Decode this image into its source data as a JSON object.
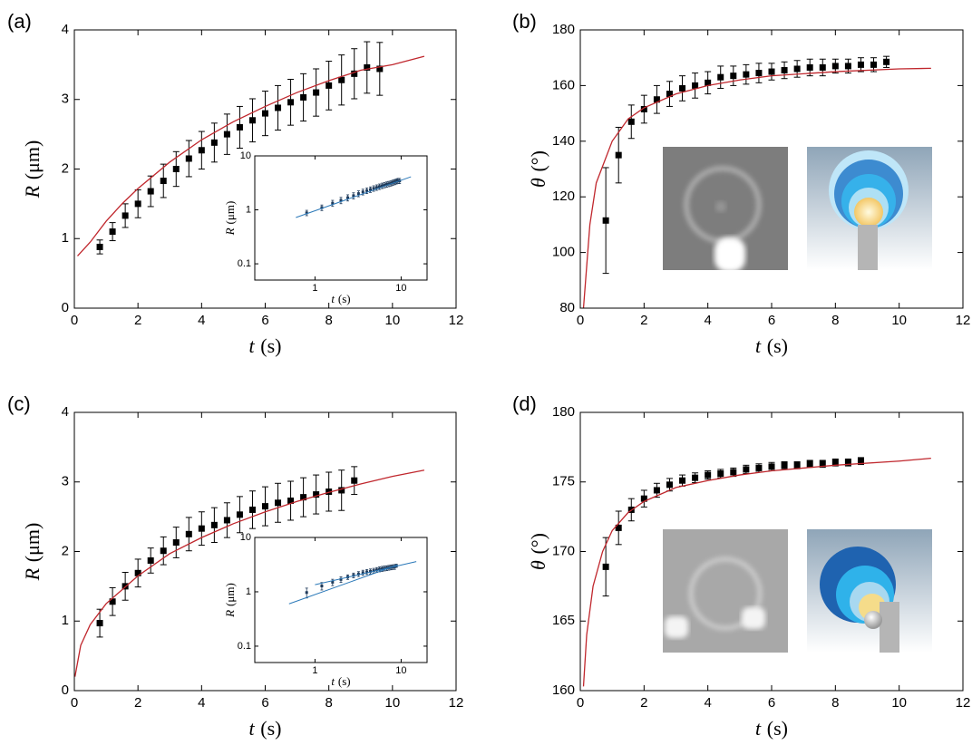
{
  "chart_data": [
    {
      "type": "scatter",
      "label": "(a)",
      "xlabel": {
        "var": "t",
        "unit": "(s)"
      },
      "ylabel": {
        "var": "R",
        "unit": "(μm)"
      },
      "xlim": [
        0,
        12
      ],
      "ylim": [
        0,
        4
      ],
      "xticks": [
        0,
        2,
        4,
        6,
        8,
        10,
        12
      ],
      "yticks": [
        0,
        1,
        2,
        3,
        4
      ],
      "series": [
        {
          "type": "errorbar",
          "color": "#000000",
          "x": [
            0.8,
            1.2,
            1.6,
            2.0,
            2.4,
            2.8,
            3.2,
            3.6,
            4.0,
            4.4,
            4.8,
            5.2,
            5.6,
            6.0,
            6.4,
            6.8,
            7.2,
            7.6,
            8.0,
            8.4,
            8.8,
            9.2,
            9.6
          ],
          "values": [
            0.88,
            1.1,
            1.33,
            1.5,
            1.68,
            1.83,
            2.0,
            2.15,
            2.27,
            2.38,
            2.5,
            2.6,
            2.7,
            2.8,
            2.88,
            2.96,
            3.03,
            3.1,
            3.2,
            3.28,
            3.37,
            3.46,
            3.44
          ],
          "errors": [
            0.1,
            0.13,
            0.17,
            0.2,
            0.22,
            0.24,
            0.25,
            0.26,
            0.27,
            0.28,
            0.29,
            0.3,
            0.31,
            0.32,
            0.32,
            0.33,
            0.34,
            0.34,
            0.35,
            0.36,
            0.36,
            0.37,
            0.38
          ]
        },
        {
          "type": "line",
          "color": "#c0272d",
          "x": [
            0.1,
            0.5,
            1,
            1.5,
            2,
            3,
            4,
            5,
            6,
            7,
            8,
            9,
            10,
            11
          ],
          "values": [
            0.75,
            0.95,
            1.25,
            1.5,
            1.72,
            2.1,
            2.42,
            2.68,
            2.9,
            3.1,
            3.27,
            3.42,
            3.5,
            3.62
          ]
        }
      ],
      "inset": {
        "type": "scatter",
        "log": true,
        "xlabel": {
          "var": "t",
          "unit": "(s)"
        },
        "ylabel": {
          "var": "R",
          "unit": "(μm)"
        },
        "xlim": [
          0.2,
          20
        ],
        "ylim": [
          0.05,
          10
        ],
        "xticks": [
          1,
          10
        ],
        "yticks": [
          0.1,
          1,
          10
        ],
        "series": [
          {
            "type": "errorbar",
            "color": "#1f3a5a",
            "x": [
              0.8,
              1.2,
              1.6,
              2.0,
              2.4,
              2.8,
              3.2,
              3.6,
              4.0,
              4.4,
              4.8,
              5.2,
              5.6,
              6.0,
              6.4,
              6.8,
              7.2,
              7.6,
              8.0,
              8.4,
              8.8,
              9.2,
              9.6
            ],
            "values": [
              0.88,
              1.1,
              1.33,
              1.5,
              1.68,
              1.83,
              2.0,
              2.15,
              2.27,
              2.38,
              2.5,
              2.6,
              2.7,
              2.8,
              2.88,
              2.96,
              3.03,
              3.1,
              3.2,
              3.28,
              3.37,
              3.46,
              3.44
            ],
            "errors": [
              0.1,
              0.13,
              0.17,
              0.2,
              0.22,
              0.24,
              0.25,
              0.26,
              0.27,
              0.28,
              0.29,
              0.3,
              0.31,
              0.32,
              0.32,
              0.33,
              0.34,
              0.34,
              0.35,
              0.36,
              0.36,
              0.37,
              0.38
            ]
          },
          {
            "type": "line",
            "color": "#2a78b8",
            "x": [
              0.6,
              13
            ],
            "values": [
              0.72,
              4.1
            ]
          }
        ]
      }
    },
    {
      "type": "scatter",
      "label": "(b)",
      "xlabel": {
        "var": "t",
        "unit": "(s)"
      },
      "ylabel": {
        "var": "θ",
        "unit": "(°)"
      },
      "xlim": [
        0,
        12
      ],
      "ylim": [
        80,
        180
      ],
      "xticks": [
        0,
        2,
        4,
        6,
        8,
        10,
        12
      ],
      "yticks": [
        80,
        100,
        120,
        140,
        160,
        180
      ],
      "series": [
        {
          "type": "errorbar",
          "color": "#000000",
          "x": [
            0.8,
            1.2,
            1.6,
            2.0,
            2.4,
            2.8,
            3.2,
            3.6,
            4.0,
            4.4,
            4.8,
            5.2,
            5.6,
            6.0,
            6.4,
            6.8,
            7.2,
            7.6,
            8.0,
            8.4,
            8.8,
            9.2,
            9.6
          ],
          "values": [
            111.5,
            135,
            147,
            151.5,
            155,
            157,
            159,
            160,
            161,
            163,
            163.5,
            164,
            164.5,
            165,
            165.5,
            166,
            166.5,
            166.5,
            167,
            167,
            167.5,
            167.5,
            168.5
          ],
          "errors": [
            19,
            10,
            6,
            5,
            5,
            4.5,
            4.5,
            4.5,
            4,
            4,
            3.5,
            3.5,
            3.5,
            3,
            3,
            3,
            3,
            3,
            2.5,
            2.5,
            2.5,
            2.5,
            2
          ]
        },
        {
          "type": "line",
          "color": "#c0272d",
          "x": [
            0.1,
            0.3,
            0.5,
            1,
            1.5,
            2,
            3,
            4,
            5,
            6,
            8,
            10,
            11
          ],
          "values": [
            80,
            110,
            125,
            140,
            148,
            152,
            157,
            160,
            162,
            163.5,
            165,
            166,
            166.2
          ]
        }
      ]
    },
    {
      "type": "scatter",
      "label": "(c)",
      "xlabel": {
        "var": "t",
        "unit": "(s)"
      },
      "ylabel": {
        "var": "R",
        "unit": "(μm)"
      },
      "xlim": [
        0,
        12
      ],
      "ylim": [
        0,
        4
      ],
      "xticks": [
        0,
        2,
        4,
        6,
        8,
        10,
        12
      ],
      "yticks": [
        0,
        1,
        2,
        3,
        4
      ],
      "series": [
        {
          "type": "errorbar",
          "color": "#000000",
          "x": [
            0.8,
            1.2,
            1.6,
            2.0,
            2.4,
            2.8,
            3.2,
            3.6,
            4.0,
            4.4,
            4.8,
            5.2,
            5.6,
            6.0,
            6.4,
            6.8,
            7.2,
            7.6,
            8.0,
            8.4,
            8.8
          ],
          "values": [
            0.97,
            1.28,
            1.5,
            1.69,
            1.87,
            2.01,
            2.13,
            2.25,
            2.33,
            2.38,
            2.45,
            2.53,
            2.6,
            2.65,
            2.7,
            2.73,
            2.78,
            2.82,
            2.86,
            2.88,
            3.02
          ],
          "errors": [
            0.2,
            0.2,
            0.2,
            0.2,
            0.18,
            0.2,
            0.22,
            0.24,
            0.24,
            0.25,
            0.25,
            0.26,
            0.27,
            0.28,
            0.28,
            0.28,
            0.28,
            0.28,
            0.28,
            0.29,
            0.2
          ]
        },
        {
          "type": "line",
          "color": "#c0272d",
          "x": [
            0.02,
            0.2,
            0.5,
            1,
            2,
            3,
            4,
            5,
            6,
            7,
            8,
            9,
            10,
            11
          ],
          "values": [
            0.2,
            0.65,
            0.95,
            1.25,
            1.65,
            1.97,
            2.2,
            2.4,
            2.57,
            2.72,
            2.85,
            2.97,
            3.08,
            3.17
          ]
        }
      ],
      "inset": {
        "type": "scatter",
        "log": true,
        "xlabel": {
          "var": "t",
          "unit": "(s)"
        },
        "ylabel": {
          "var": "R",
          "unit": "(μm)"
        },
        "xlim": [
          0.2,
          20
        ],
        "ylim": [
          0.05,
          10
        ],
        "xticks": [
          1,
          10
        ],
        "yticks": [
          0.1,
          1,
          10
        ],
        "series": [
          {
            "type": "errorbar",
            "color": "#1f3a5a",
            "x": [
              0.8,
              1.2,
              1.6,
              2.0,
              2.4,
              2.8,
              3.2,
              3.6,
              4.0,
              4.4,
              4.8,
              5.2,
              5.6,
              6.0,
              6.4,
              6.8,
              7.2,
              7.6,
              8.0,
              8.4,
              8.8
            ],
            "values": [
              0.97,
              1.28,
              1.5,
              1.69,
              1.87,
              2.01,
              2.13,
              2.25,
              2.33,
              2.38,
              2.45,
              2.53,
              2.6,
              2.65,
              2.7,
              2.73,
              2.78,
              2.82,
              2.86,
              2.88,
              3.02
            ],
            "errors": [
              0.2,
              0.2,
              0.2,
              0.2,
              0.18,
              0.2,
              0.22,
              0.24,
              0.24,
              0.25,
              0.25,
              0.26,
              0.27,
              0.28,
              0.28,
              0.28,
              0.28,
              0.28,
              0.28,
              0.29,
              0.2
            ]
          },
          {
            "type": "line",
            "color": "#2a78b8",
            "x": [
              0.5,
              9
            ],
            "values": [
              0.6,
              3.1
            ]
          },
          {
            "type": "line",
            "color": "#2a78b8",
            "x": [
              1,
              15
            ],
            "values": [
              1.35,
              3.6
            ]
          }
        ]
      }
    },
    {
      "type": "scatter",
      "label": "(d)",
      "xlabel": {
        "var": "t",
        "unit": "(s)"
      },
      "ylabel": {
        "var": "θ",
        "unit": "(°)"
      },
      "xlim": [
        0,
        12
      ],
      "ylim": [
        160,
        180
      ],
      "xticks": [
        0,
        2,
        4,
        6,
        8,
        10,
        12
      ],
      "yticks": [
        160,
        165,
        170,
        175,
        180
      ],
      "series": [
        {
          "type": "errorbar",
          "color": "#000000",
          "x": [
            0.8,
            1.2,
            1.6,
            2.0,
            2.4,
            2.8,
            3.2,
            3.6,
            4.0,
            4.4,
            4.8,
            5.2,
            5.6,
            6.0,
            6.4,
            6.8,
            7.2,
            7.6,
            8.0,
            8.4,
            8.8
          ],
          "values": [
            168.9,
            171.7,
            173.0,
            173.8,
            174.4,
            174.8,
            175.1,
            175.3,
            175.5,
            175.6,
            175.7,
            175.9,
            176.0,
            176.1,
            176.2,
            176.2,
            176.3,
            176.3,
            176.4,
            176.4,
            176.5
          ],
          "errors": [
            2.1,
            1.2,
            0.8,
            0.6,
            0.5,
            0.45,
            0.4,
            0.35,
            0.3,
            0.3,
            0.3,
            0.3,
            0.3,
            0.3,
            0.25,
            0.25,
            0.25,
            0.25,
            0.25,
            0.25,
            0.25
          ]
        },
        {
          "type": "line",
          "color": "#c0272d",
          "x": [
            0.1,
            0.2,
            0.4,
            0.7,
            1,
            1.5,
            2,
            3,
            4,
            5,
            6,
            8,
            10,
            11
          ],
          "values": [
            160.3,
            164,
            167.5,
            170,
            171.5,
            172.8,
            173.6,
            174.6,
            175.1,
            175.5,
            175.8,
            176.2,
            176.5,
            176.7
          ]
        }
      ]
    }
  ]
}
